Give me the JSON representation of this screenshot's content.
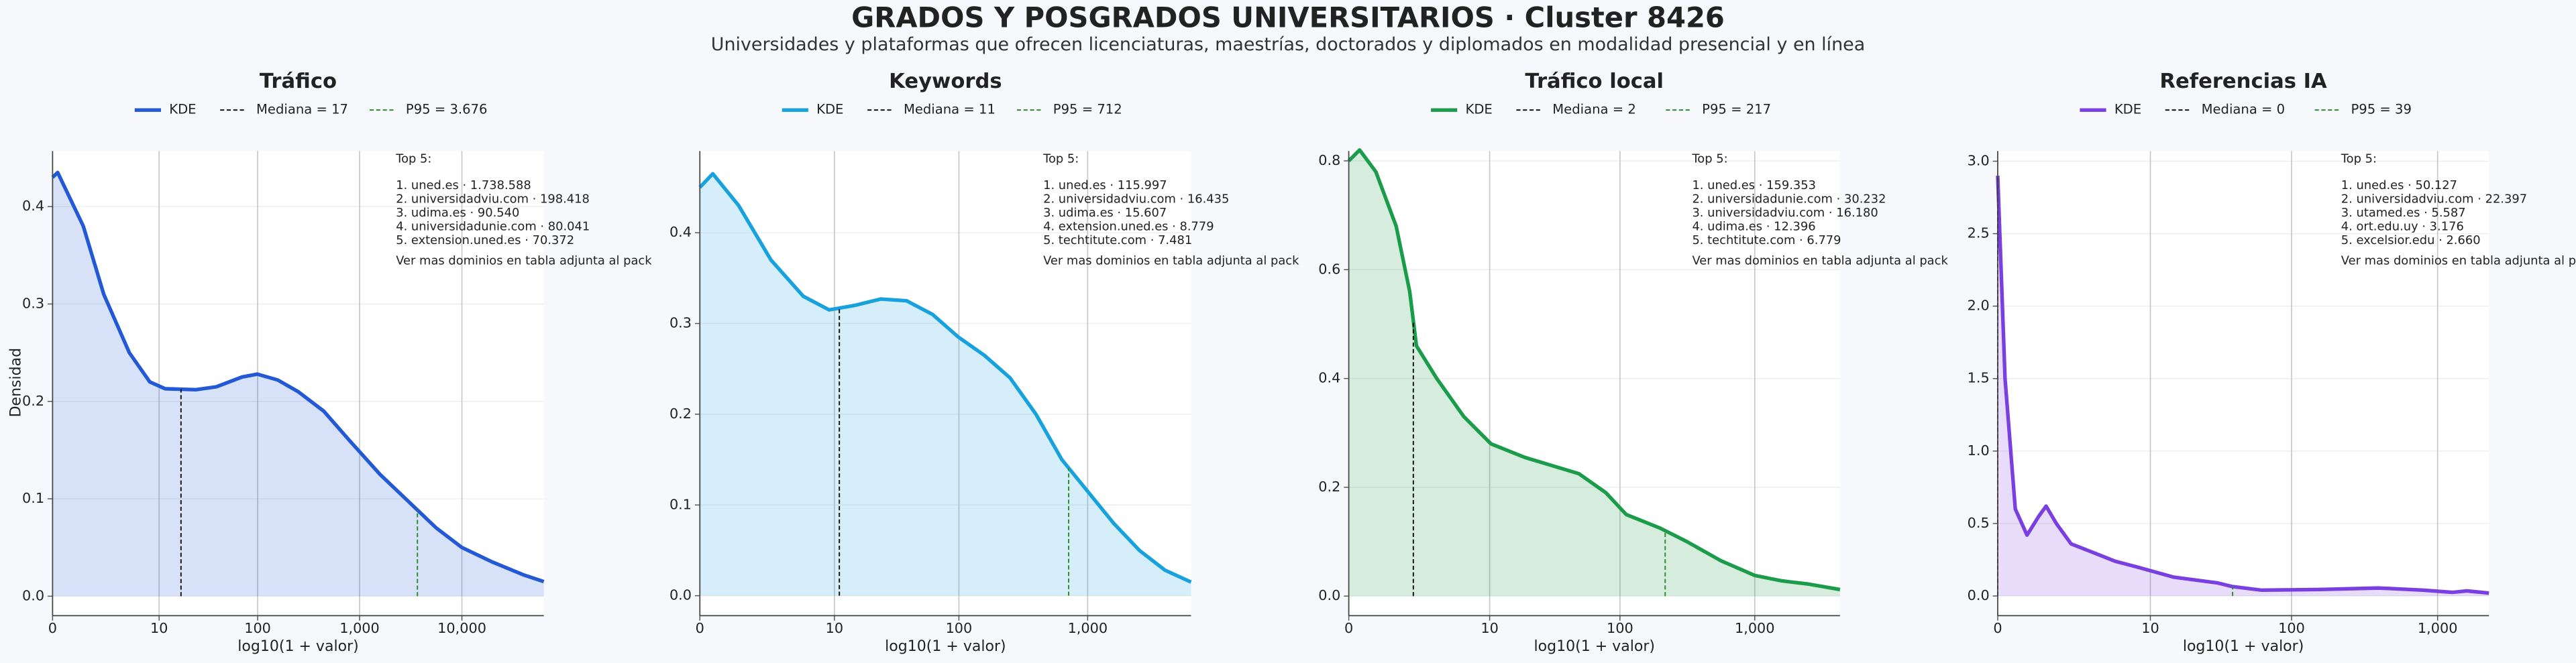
{
  "title": "GRADOS Y POSGRADOS UNIVERSITARIOS · Cluster 8426",
  "subtitle": "Universidades y plataformas que ofrecen licenciaturas, maestrías, doctorados y diplomados en modalidad presencial y en línea",
  "chart_data": [
    {
      "type": "area",
      "title": "Tráfico",
      "xlabel": "log10(1 + valor)",
      "ylabel": "Densidad",
      "x": [
        0,
        0.05,
        0.3,
        0.5,
        0.75,
        0.95,
        1.1,
        1.4,
        1.6,
        1.85,
        2.0,
        2.2,
        2.4,
        2.65,
        2.9,
        3.2,
        3.5,
        3.75,
        4.0,
        4.3,
        4.6,
        4.8
      ],
      "series": [
        {
          "name": "KDE",
          "color": "#2459d6",
          "values": [
            0.43,
            0.435,
            0.38,
            0.31,
            0.25,
            0.22,
            0.213,
            0.212,
            0.215,
            0.225,
            0.228,
            0.222,
            0.21,
            0.19,
            0.16,
            0.125,
            0.095,
            0.07,
            0.05,
            0.035,
            0.022,
            0.015
          ]
        }
      ],
      "reference_lines": [
        {
          "name": "Mediana = 17",
          "x": 1.255,
          "color": "#111111"
        },
        {
          "name": "P95 = 3.676",
          "x": 3.565,
          "color": "#2e8b2e"
        }
      ],
      "xlim": [
        0,
        4.8
      ],
      "ylim": [
        -0.02,
        0.457
      ],
      "xticks": [
        0,
        {
          "value": 1.041,
          "label": "10"
        },
        {
          "value": 2.004,
          "label": "100"
        },
        {
          "value": 3.0,
          "label": "1,000"
        },
        {
          "value": 4.0,
          "label": "10,000"
        }
      ],
      "yticks": [
        {
          "value": 0,
          "label": "0.0"
        },
        0.1,
        0.2,
        0.3,
        0.4
      ],
      "grid": true,
      "annotation": {
        "title": "Top 5:",
        "items": [
          "1. uned.es · 1.738.588",
          "2. universidadviu.com · 198.418",
          "3. udima.es · 90.540",
          "4. universidadunie.com · 80.041",
          "5. extension.uned.es · 70.372"
        ],
        "note": "Ver mas dominios en tabla adjunta al pack"
      }
    },
    {
      "type": "area",
      "title": "Keywords",
      "xlabel": "log10(1 + valor)",
      "x": [
        0,
        0.1,
        0.3,
        0.55,
        0.8,
        1.0,
        1.2,
        1.4,
        1.6,
        1.8,
        2.0,
        2.2,
        2.4,
        2.6,
        2.8,
        3.0,
        3.2,
        3.4,
        3.6,
        3.8
      ],
      "series": [
        {
          "name": "KDE",
          "color": "#17a2de",
          "values": [
            0.45,
            0.465,
            0.43,
            0.37,
            0.33,
            0.315,
            0.32,
            0.327,
            0.325,
            0.31,
            0.285,
            0.265,
            0.24,
            0.2,
            0.15,
            0.115,
            0.08,
            0.05,
            0.028,
            0.015
          ]
        }
      ],
      "reference_lines": [
        {
          "name": "Mediana = 11",
          "x": 1.079,
          "color": "#111111"
        },
        {
          "name": "P95 = 712",
          "x": 2.853,
          "color": "#2e8b2e"
        }
      ],
      "xlim": [
        0,
        3.8
      ],
      "ylim": [
        -0.022,
        0.49
      ],
      "xticks": [
        0,
        {
          "value": 1.041,
          "label": "10"
        },
        {
          "value": 2.004,
          "label": "100"
        },
        {
          "value": 3.0,
          "label": "1,000"
        }
      ],
      "yticks": [
        {
          "value": 0,
          "label": "0.0"
        },
        0.1,
        0.2,
        0.3,
        0.4
      ],
      "grid": true,
      "annotation": {
        "title": "Top 5:",
        "items": [
          "1. uned.es · 115.997",
          "2. universidadviu.com · 16.435",
          "3. udima.es · 15.607",
          "4. extension.uned.es · 8.779",
          "5. techtitute.com · 7.481"
        ],
        "note": "Ver mas dominios en tabla adjunta al pack"
      }
    },
    {
      "type": "area",
      "title": "Tráfico local",
      "xlabel": "log10(1 + valor)",
      "x": [
        0,
        0.08,
        0.2,
        0.35,
        0.45,
        0.5,
        0.65,
        0.85,
        1.05,
        1.3,
        1.5,
        1.7,
        1.9,
        2.05,
        2.3,
        2.5,
        2.75,
        3.0,
        3.2,
        3.4,
        3.63
      ],
      "series": [
        {
          "name": "KDE",
          "color": "#1a9c4a",
          "values": [
            0.8,
            0.82,
            0.78,
            0.68,
            0.56,
            0.46,
            0.4,
            0.33,
            0.28,
            0.255,
            0.24,
            0.225,
            0.19,
            0.15,
            0.125,
            0.1,
            0.065,
            0.038,
            0.028,
            0.022,
            0.012
          ]
        }
      ],
      "reference_lines": [
        {
          "name": "Mediana = 2",
          "x": 0.477,
          "color": "#111111"
        },
        {
          "name": "P95 = 217",
          "x": 2.338,
          "color": "#2e8b2e"
        }
      ],
      "xlim": [
        0,
        3.63
      ],
      "ylim": [
        -0.036,
        0.818
      ],
      "xticks": [
        0,
        {
          "value": 1.041,
          "label": "10"
        },
        {
          "value": 2.004,
          "label": "100"
        },
        {
          "value": 3.0,
          "label": "1,000"
        }
      ],
      "yticks": [
        {
          "value": 0,
          "label": "0.0"
        },
        0.2,
        0.4,
        0.6,
        0.8
      ],
      "grid": true,
      "annotation": {
        "title": "Top 5:",
        "items": [
          "1. uned.es · 159.353",
          "2. universidadunie.com · 30.232",
          "3. universidadviu.com · 16.180",
          "4. udima.es · 12.396",
          "5. techtitute.com · 6.779"
        ],
        "note": "Ver mas dominios en tabla adjunta al pack"
      }
    },
    {
      "type": "area",
      "title": "Referencias IA",
      "xlabel": "log10(1 + valor)",
      "x": [
        0,
        0.05,
        0.12,
        0.2,
        0.28,
        0.33,
        0.4,
        0.5,
        0.65,
        0.8,
        0.95,
        1.2,
        1.5,
        1.6,
        1.8,
        2.2,
        2.6,
        2.9,
        3.1,
        3.2,
        3.35
      ],
      "series": [
        {
          "name": "KDE",
          "color": "#7a3fe0",
          "values": [
            2.9,
            1.5,
            0.6,
            0.42,
            0.55,
            0.62,
            0.5,
            0.36,
            0.3,
            0.24,
            0.2,
            0.13,
            0.09,
            0.065,
            0.04,
            0.045,
            0.055,
            0.04,
            0.025,
            0.035,
            0.02
          ]
        }
      ],
      "reference_lines": [
        {
          "name": "Mediana = 0",
          "x": 0,
          "color": "#111111"
        },
        {
          "name": "P95 = 39",
          "x": 1.602,
          "color": "#2e8b2e"
        }
      ],
      "xlim": [
        0,
        3.35
      ],
      "ylim": [
        -0.136,
        3.07
      ],
      "xticks": [
        0,
        {
          "value": 1.041,
          "label": "10"
        },
        {
          "value": 2.004,
          "label": "100"
        },
        {
          "value": 3.0,
          "label": "1,000"
        }
      ],
      "yticks": [
        {
          "value": 0,
          "label": "0.0"
        },
        0.5,
        {
          "value": 1,
          "label": "1.0"
        },
        1.5,
        {
          "value": 2,
          "label": "2.0"
        },
        2.5,
        {
          "value": 3,
          "label": "3.0"
        }
      ],
      "grid": true,
      "annotation": {
        "title": "Top 5:",
        "items": [
          "1. uned.es · 50.127",
          "2. universidadviu.com · 22.397",
          "3. utamed.es · 5.587",
          "4. ort.edu.uy · 3.176",
          "5. excelsior.edu · 2.660"
        ],
        "note": "Ver mas dominios en tabla adjunta al pack"
      }
    }
  ]
}
